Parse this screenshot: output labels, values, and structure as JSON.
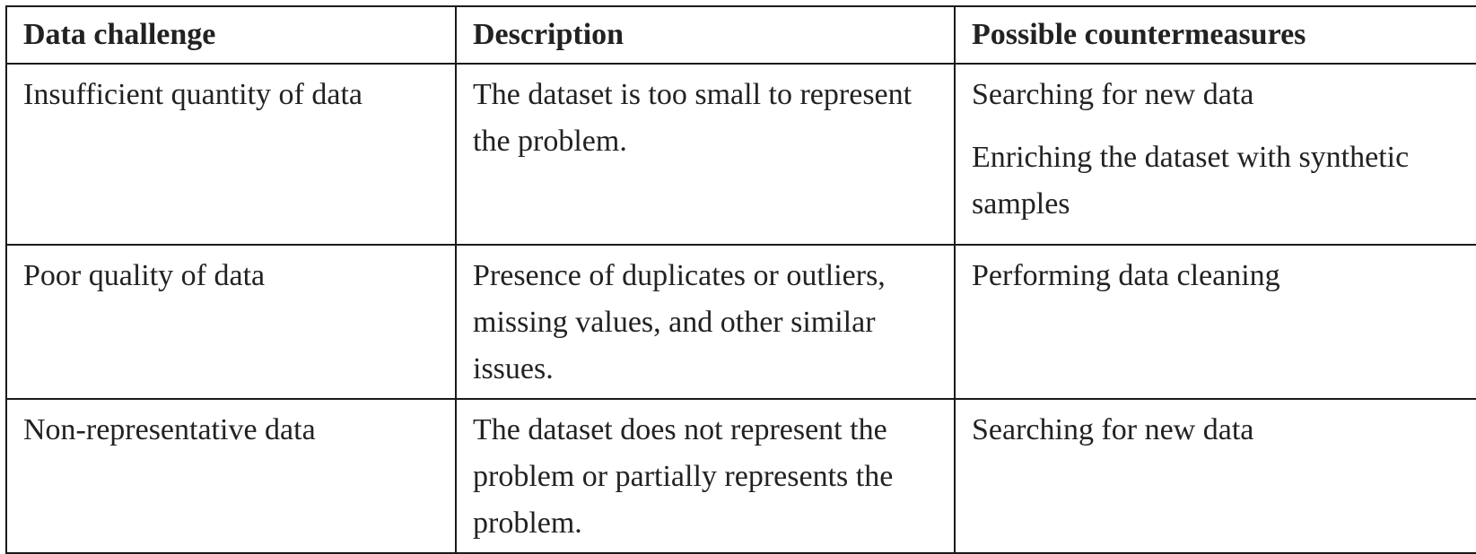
{
  "table": {
    "headers": [
      "Data challenge",
      "Description",
      "Possible countermeasures"
    ],
    "rows": [
      {
        "challenge": "Insufficient quantity of data",
        "description": "The dataset is too small to represent the problem.",
        "countermeasures": [
          "Searching for new data",
          "Enriching the dataset with synthetic samples"
        ]
      },
      {
        "challenge": "Poor quality of data",
        "description": "Presence of duplicates or outliers, missing values, and other similar issues.",
        "countermeasures": [
          "Performing data cleaning"
        ]
      },
      {
        "challenge": "Non-representative data",
        "description": "The dataset does not represent the problem or partially represents the problem.",
        "countermeasures": [
          "Searching for new data"
        ]
      }
    ]
  }
}
